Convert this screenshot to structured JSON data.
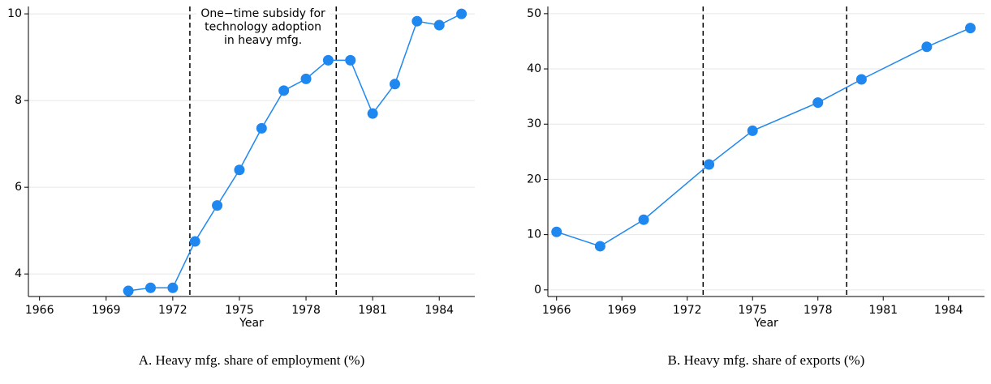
{
  "chart_data": [
    {
      "type": "line",
      "caption": "A. Heavy mfg. share of employment (%)",
      "x_label": "Year",
      "x": [
        1970,
        1971,
        1972,
        1973,
        1974,
        1975,
        1976,
        1977,
        1978,
        1979,
        1980,
        1981,
        1982,
        1983,
        1984,
        1985
      ],
      "series": [
        {
          "color": "#1f87f0",
          "values": [
            3.61,
            3.68,
            3.68,
            4.75,
            5.58,
            6.4,
            7.36,
            8.23,
            8.5,
            8.93,
            8.93,
            7.7,
            8.38,
            9.83,
            9.74,
            10.0
          ]
        }
      ],
      "xlim": [
        1965.5,
        1985.6
      ],
      "xticks": [
        1966,
        1969,
        1972,
        1975,
        1978,
        1981,
        1984
      ],
      "ylim": [
        3.48,
        10.17
      ],
      "yticks": [
        4,
        6,
        8,
        10
      ],
      "grid": true,
      "vlines": [
        1972.77,
        1979.36
      ],
      "annotation": [
        "One−time subsidy for",
        "technology adoption",
        "in heavy mfg."
      ]
    },
    {
      "type": "line",
      "caption": "B. Heavy mfg. share of exports (%)",
      "x_label": "Year",
      "x": [
        1966,
        1968,
        1970,
        1973,
        1975,
        1978,
        1980,
        1983,
        1985
      ],
      "series": [
        {
          "color": "#1f87f0",
          "values": [
            10.5,
            7.9,
            12.7,
            22.7,
            28.8,
            33.9,
            38.1,
            44.0,
            47.4
          ]
        }
      ],
      "xlim": [
        1965.6,
        1985.65
      ],
      "xticks": [
        1966,
        1969,
        1972,
        1975,
        1978,
        1981,
        1984
      ],
      "ylim": [
        -1.2,
        51.3
      ],
      "yticks": [
        0,
        10,
        20,
        30,
        40,
        50
      ],
      "grid": true,
      "vlines": [
        1972.73,
        1979.32
      ]
    }
  ]
}
